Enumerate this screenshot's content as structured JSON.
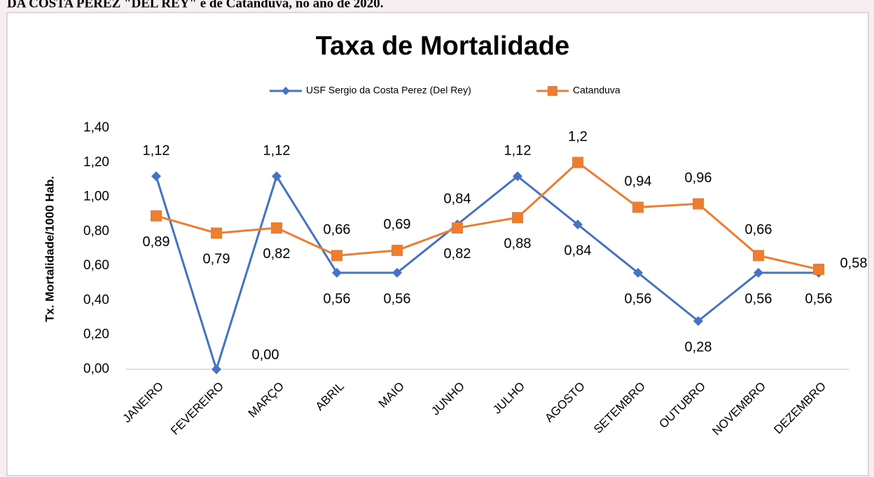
{
  "caption": "DA COSTA PEREZ \"DEL REY\" e de Catanduva, no ano de 2020.",
  "chart_data": {
    "type": "line",
    "title": "Taxa de Mortalidade",
    "ylabel": "Tx. Mortalidade/1000  Hab.",
    "categories": [
      "JANEIRO",
      "FEVEREIRO",
      "MARÇO",
      "ABRIL",
      "MAIO",
      "JUNHO",
      "JULHO",
      "AGOSTO",
      "SETEMBRO",
      "OUTUBRO",
      "NOVEMBRO",
      "DEZEMBRO"
    ],
    "series": [
      {
        "name": "USF Sergio da Costa Perez (Del Rey)",
        "color": "#4472c4",
        "marker": "diamond",
        "values": [
          1.12,
          0,
          1.12,
          0.56,
          0.56,
          0.84,
          1.12,
          0.84,
          0.56,
          0.28,
          0.56,
          0.56
        ],
        "value_labels": [
          "1,12",
          "0,00",
          "1,12",
          "0,56",
          "0,56",
          "0,84",
          "1,12",
          "0,84",
          "0,56",
          "0,28",
          "0,56",
          "0,56"
        ]
      },
      {
        "name": "Catanduva",
        "color": "#ed7d31",
        "marker": "square",
        "values": [
          0.89,
          0.79,
          0.82,
          0.66,
          0.69,
          0.82,
          0.88,
          1.2,
          0.94,
          0.96,
          0.66,
          0.58
        ],
        "value_labels": [
          "0,89",
          "0,79",
          "0,82",
          "0,66",
          "0,69",
          "0,82",
          "0,88",
          "1,2",
          "0,94",
          "0,96",
          "0,66",
          "0,58"
        ]
      }
    ],
    "ylim": [
      0,
      1.4
    ],
    "yticks": [
      {
        "value": 0,
        "label": "0,00"
      },
      {
        "value": 0.2,
        "label": "0,20"
      },
      {
        "value": 0.4,
        "label": "0,40"
      },
      {
        "value": 0.6,
        "label": "0,60"
      },
      {
        "value": 0.8,
        "label": "0,80"
      },
      {
        "value": 1.0,
        "label": "1,00"
      },
      {
        "value": 1.2,
        "label": "1,20"
      },
      {
        "value": 1.4,
        "label": "1,40"
      }
    ],
    "grid": false,
    "legend": "top"
  }
}
